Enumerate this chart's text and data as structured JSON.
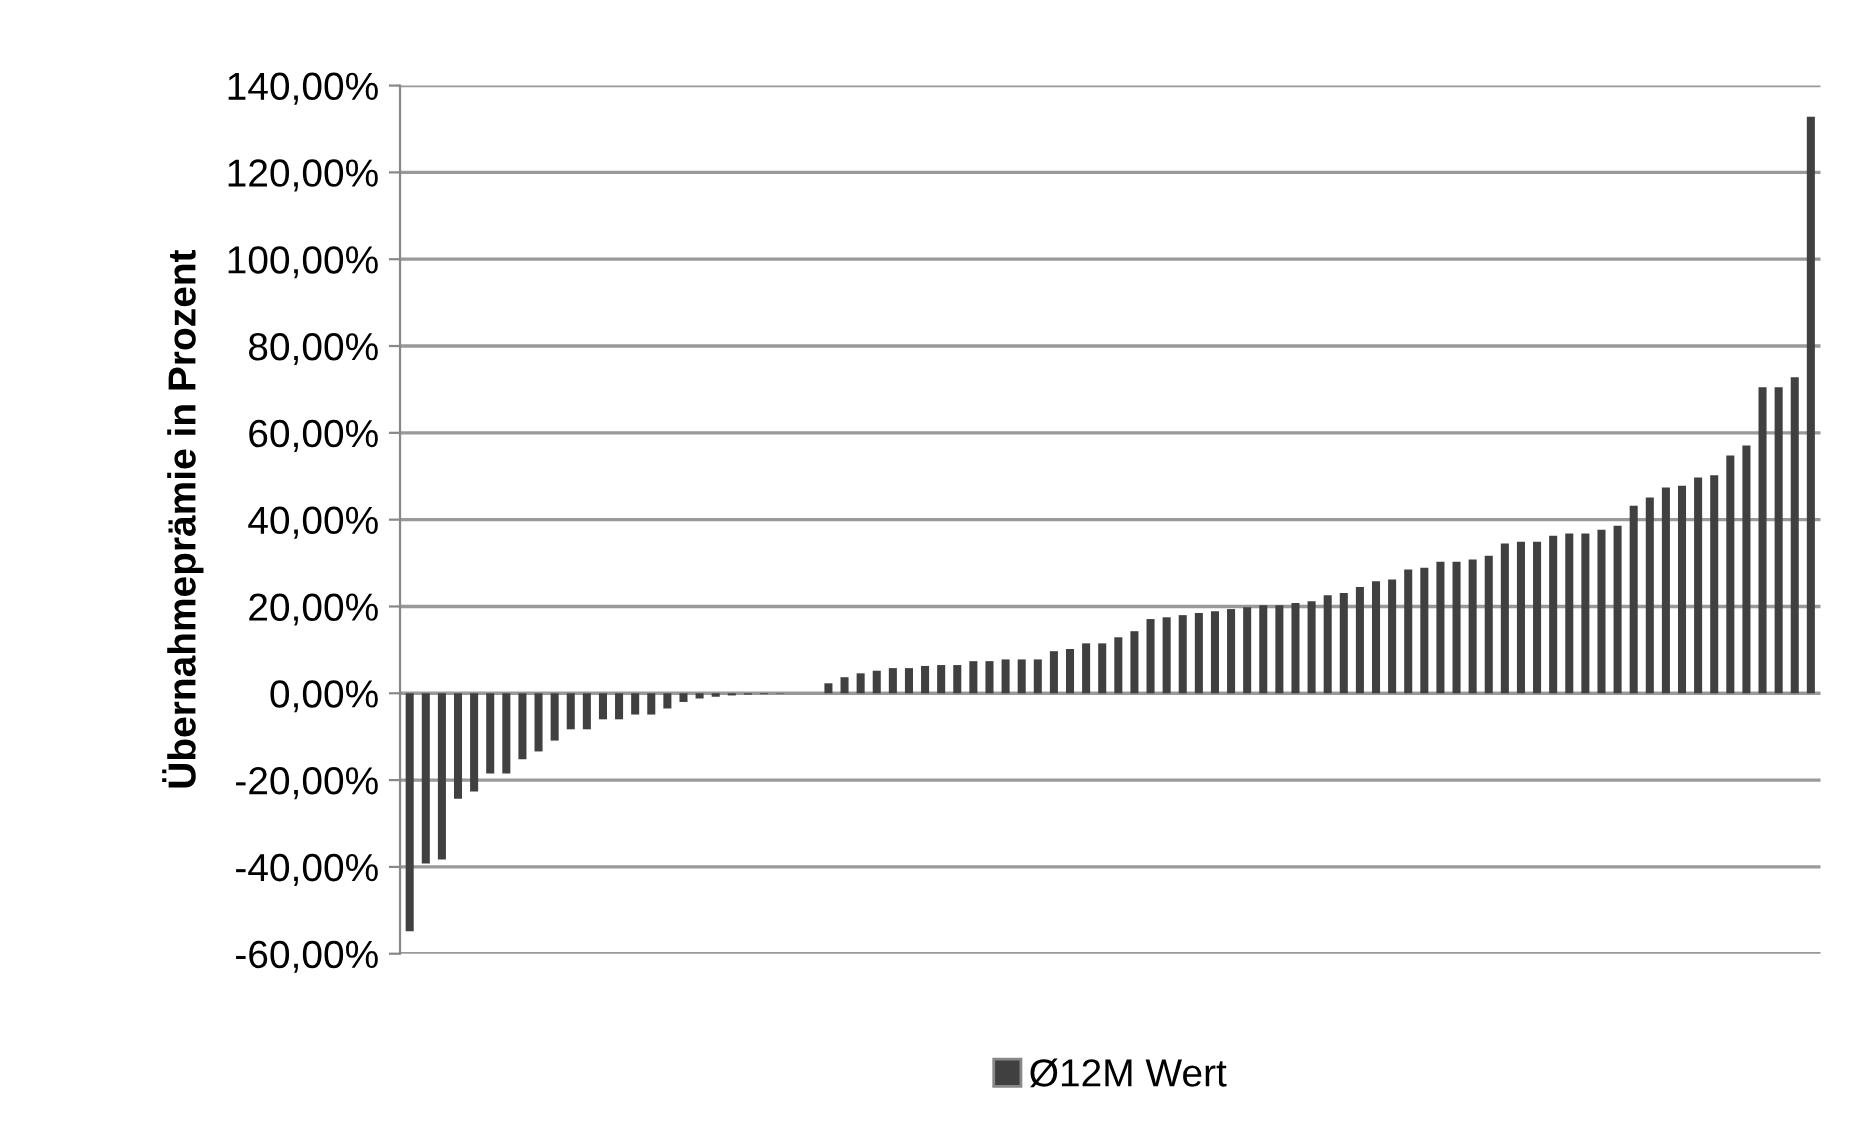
{
  "chart_data": {
    "type": "bar",
    "ylabel": "Übernahmeprämie in Prozent",
    "categories": [
      null,
      null,
      null,
      null,
      null,
      null,
      null,
      null,
      null,
      null,
      null,
      null,
      null,
      null,
      null,
      null,
      null,
      null,
      null,
      null,
      null,
      null,
      null,
      null,
      null,
      null,
      null,
      null,
      null,
      null,
      null,
      null,
      null,
      null,
      null,
      null,
      null,
      null,
      null,
      null,
      null,
      null,
      null,
      null,
      null,
      null,
      null,
      null,
      null,
      null,
      null,
      null,
      null,
      null,
      null,
      null,
      null,
      null,
      null,
      null,
      null,
      null,
      null,
      null,
      null,
      null,
      null,
      null,
      null,
      null,
      null,
      null,
      null,
      null,
      null,
      null,
      null,
      null,
      null,
      null,
      null,
      null,
      null,
      null,
      null,
      null,
      null,
      null
    ],
    "series": [
      {
        "name": "Ø12M Wert",
        "color": "#404040",
        "values": [
          -54.8,
          -39.2,
          -38.3,
          -24.3,
          -22.6,
          -18.5,
          -18.5,
          -15.2,
          -13.4,
          -10.9,
          -8.3,
          -8.3,
          -6.0,
          -6.0,
          -4.9,
          -4.9,
          -3.5,
          -2.0,
          -1.2,
          -0.8,
          -0.5,
          -0.3,
          -0.2,
          -0.1,
          0.0,
          0.0,
          2.3,
          3.7,
          4.6,
          5.2,
          5.8,
          5.8,
          6.3,
          6.5,
          6.5,
          7.4,
          7.4,
          7.8,
          7.8,
          7.8,
          9.7,
          10.2,
          11.5,
          11.5,
          12.9,
          14.3,
          17.1,
          17.5,
          18.0,
          18.5,
          18.9,
          19.4,
          19.8,
          20.3,
          20.3,
          20.8,
          21.2,
          22.6,
          23.1,
          24.5,
          25.8,
          26.2,
          28.5,
          28.9,
          30.3,
          30.3,
          30.8,
          31.7,
          34.5,
          34.9,
          34.9,
          36.3,
          36.8,
          36.8,
          37.7,
          38.6,
          43.2,
          45.1,
          47.4,
          47.8,
          49.7,
          50.2,
          54.8,
          57.1,
          70.5,
          70.5,
          72.8,
          132.8
        ]
      }
    ],
    "ylim": [
      -60,
      140
    ],
    "yticks": [
      {
        "value": -60,
        "label": "-60,00%"
      },
      {
        "value": -40,
        "label": "-40,00%"
      },
      {
        "value": -20,
        "label": "-20,00%"
      },
      {
        "value": 0,
        "label": "0,00%"
      },
      {
        "value": 20,
        "label": "20,00%"
      },
      {
        "value": 40,
        "label": "40,00%"
      },
      {
        "value": 60,
        "label": "60,00%"
      },
      {
        "value": 80,
        "label": "80,00%"
      },
      {
        "value": 100,
        "label": "100,00%"
      },
      {
        "value": 120,
        "label": "120,00%"
      },
      {
        "value": 140,
        "label": "140,00%"
      }
    ],
    "grid": "y",
    "legend": "bottom"
  }
}
